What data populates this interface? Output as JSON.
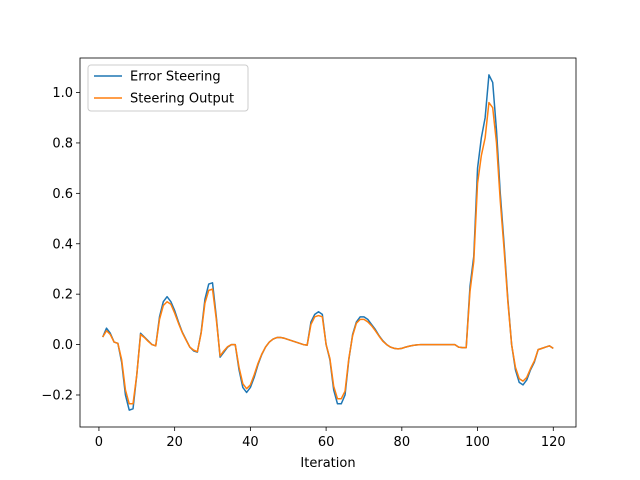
{
  "chart_data": {
    "type": "line",
    "xlabel": "Iteration",
    "x": [
      1,
      2,
      3,
      4,
      5,
      6,
      7,
      8,
      9,
      10,
      11,
      12,
      13,
      14,
      15,
      16,
      17,
      18,
      19,
      20,
      21,
      22,
      23,
      24,
      25,
      26,
      27,
      28,
      29,
      30,
      31,
      32,
      33,
      34,
      35,
      36,
      37,
      38,
      39,
      40,
      41,
      42,
      43,
      44,
      45,
      46,
      47,
      48,
      49,
      50,
      51,
      52,
      53,
      54,
      55,
      56,
      57,
      58,
      59,
      60,
      61,
      62,
      63,
      64,
      65,
      66,
      67,
      68,
      69,
      70,
      71,
      72,
      73,
      74,
      75,
      76,
      77,
      78,
      79,
      80,
      81,
      82,
      83,
      84,
      85,
      86,
      87,
      88,
      89,
      90,
      91,
      92,
      93,
      94,
      95,
      96,
      97,
      98,
      99,
      100,
      101,
      102,
      103,
      104,
      105,
      106,
      107,
      108,
      109,
      110,
      111,
      112,
      113,
      114,
      115,
      116,
      117,
      118,
      119,
      120
    ],
    "series": [
      {
        "name": "Error Steering",
        "color": "#1f77b4",
        "values": [
          0.03,
          0.065,
          0.045,
          0.01,
          0.005,
          -0.07,
          -0.2,
          -0.26,
          -0.255,
          -0.12,
          0.045,
          0.03,
          0.015,
          0.0,
          -0.005,
          0.11,
          0.17,
          0.19,
          0.17,
          0.135,
          0.09,
          0.05,
          0.02,
          -0.01,
          -0.025,
          -0.03,
          0.05,
          0.18,
          0.24,
          0.245,
          0.11,
          -0.05,
          -0.03,
          -0.01,
          0.0,
          0.0,
          -0.1,
          -0.17,
          -0.19,
          -0.17,
          -0.13,
          -0.08,
          -0.04,
          -0.01,
          0.01,
          0.022,
          0.028,
          0.028,
          0.025,
          0.02,
          0.015,
          0.01,
          0.005,
          0.0,
          -0.002,
          0.09,
          0.12,
          0.13,
          0.12,
          0.0,
          -0.06,
          -0.18,
          -0.235,
          -0.235,
          -0.2,
          -0.06,
          0.04,
          0.09,
          0.11,
          0.11,
          0.1,
          0.08,
          0.06,
          0.035,
          0.015,
          0.0,
          -0.01,
          -0.015,
          -0.017,
          -0.015,
          -0.01,
          -0.006,
          -0.003,
          -0.001,
          0.0,
          0.0,
          0.0,
          0.0,
          0.0,
          0.0,
          0.0,
          0.0,
          0.0,
          0.0,
          -0.01,
          -0.012,
          -0.012,
          0.23,
          0.35,
          0.7,
          0.82,
          0.9,
          1.07,
          1.04,
          0.85,
          0.6,
          0.4,
          0.18,
          0.0,
          -0.1,
          -0.15,
          -0.16,
          -0.14,
          -0.1,
          -0.07,
          -0.02,
          -0.015,
          -0.01,
          -0.005,
          -0.015
        ]
      },
      {
        "name": "Steering Output",
        "color": "#ff7f0e",
        "values": [
          0.03,
          0.055,
          0.04,
          0.01,
          0.005,
          -0.06,
          -0.18,
          -0.235,
          -0.235,
          -0.12,
          0.04,
          0.028,
          0.013,
          0.0,
          -0.005,
          0.1,
          0.155,
          0.17,
          0.16,
          0.125,
          0.085,
          0.048,
          0.018,
          -0.01,
          -0.022,
          -0.028,
          0.045,
          0.165,
          0.215,
          0.22,
          0.1,
          -0.045,
          -0.025,
          -0.008,
          0.0,
          0.0,
          -0.09,
          -0.155,
          -0.175,
          -0.16,
          -0.12,
          -0.075,
          -0.038,
          -0.01,
          0.01,
          0.022,
          0.028,
          0.028,
          0.025,
          0.02,
          0.015,
          0.01,
          0.005,
          0.0,
          -0.002,
          0.08,
          0.11,
          0.115,
          0.11,
          0.0,
          -0.055,
          -0.165,
          -0.215,
          -0.215,
          -0.185,
          -0.055,
          0.035,
          0.085,
          0.1,
          0.1,
          0.09,
          0.075,
          0.055,
          0.033,
          0.013,
          0.0,
          -0.01,
          -0.015,
          -0.017,
          -0.015,
          -0.01,
          -0.006,
          -0.003,
          -0.001,
          0.0,
          0.0,
          0.0,
          0.0,
          0.0,
          0.0,
          0.0,
          0.0,
          0.0,
          0.0,
          -0.01,
          -0.012,
          -0.012,
          0.21,
          0.33,
          0.64,
          0.75,
          0.82,
          0.96,
          0.94,
          0.8,
          0.57,
          0.38,
          0.17,
          0.0,
          -0.09,
          -0.135,
          -0.145,
          -0.13,
          -0.095,
          -0.065,
          -0.02,
          -0.015,
          -0.01,
          -0.005,
          -0.015
        ]
      }
    ],
    "xlim": [
      -5,
      126
    ],
    "ylim": [
      -0.327,
      1.137
    ],
    "xticks": [
      0,
      20,
      40,
      60,
      80,
      100,
      120
    ],
    "yticks": [
      {
        "value": -0.2,
        "label": "−0.2"
      },
      {
        "value": 0,
        "label": "0.0"
      },
      {
        "value": 0.2,
        "label": "0.2"
      },
      {
        "value": 0.4,
        "label": "0.4"
      },
      {
        "value": 0.6,
        "label": "0.6"
      },
      {
        "value": 0.8,
        "label": "0.8"
      },
      {
        "value": 1.0,
        "label": "1.0"
      }
    ],
    "legend": "upper left",
    "grid": false
  }
}
